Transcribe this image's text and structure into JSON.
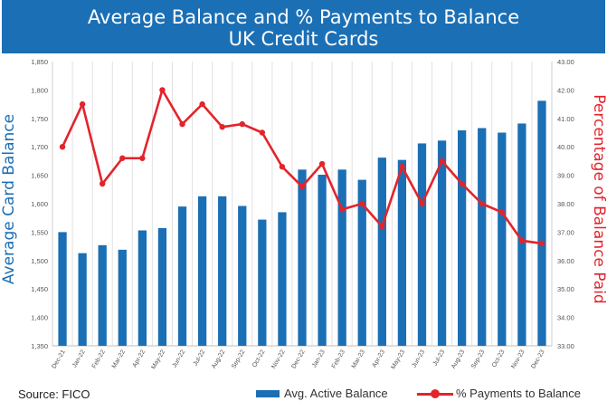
{
  "header": {
    "title_line1": "Average Balance and % Payments to Balance",
    "title_line2": "UK Credit Cards"
  },
  "footer": {
    "source": "Source: FICO"
  },
  "chart_data": {
    "type": "bar+line",
    "categories": [
      "Dec-21",
      "Jan-22",
      "Feb-22",
      "Mar-22",
      "Apr-22",
      "May-22",
      "Jun-22",
      "Jul-22",
      "Aug-22",
      "Sep-22",
      "Oct-22",
      "Nov-22",
      "Dec-22",
      "Jan-23",
      "Feb-23",
      "Mar-23",
      "Apr-23",
      "May-23",
      "Jun-23",
      "Jul-23",
      "Aug-23",
      "Sep-23",
      "Oct-23",
      "Nov-23",
      "Dec-23"
    ],
    "series": [
      {
        "name": "Avg. Active Balance",
        "kind": "bar",
        "axis": "left",
        "values": [
          1550,
          1513,
          1527,
          1519,
          1553,
          1557,
          1595,
          1613,
          1613,
          1596,
          1572,
          1585,
          1660,
          1651,
          1660,
          1642,
          1681,
          1677,
          1706,
          1711,
          1729,
          1733,
          1725,
          1741,
          1781
        ]
      },
      {
        "name": "% Payments to Balance",
        "kind": "line",
        "axis": "right",
        "values": [
          40.0,
          41.5,
          38.7,
          39.6,
          39.6,
          42.0,
          40.8,
          41.5,
          40.7,
          40.8,
          40.5,
          39.3,
          38.6,
          39.4,
          37.8,
          38.0,
          37.2,
          39.3,
          38.0,
          39.5,
          38.7,
          38.0,
          37.7,
          36.7,
          36.6
        ]
      }
    ],
    "xlabel": "",
    "ylabel_left": "Average Card Balance",
    "ylabel_right": "Percentage of Balance Paid",
    "ylim_left": [
      1350,
      1850
    ],
    "ylim_right": [
      33.0,
      43.0
    ],
    "yticks_left": [
      "1,350",
      "1,400",
      "1,450",
      "1,500",
      "1,550",
      "1,600",
      "1,650",
      "1,700",
      "1,750",
      "1,800",
      "1,850"
    ],
    "yticks_right": [
      "33.00",
      "34.00",
      "35.00",
      "36.00",
      "37.00",
      "38.00",
      "39.00",
      "40.00",
      "41.00",
      "42.00",
      "43.00"
    ],
    "grid": "vertical",
    "legend_position": "bottom-right",
    "colors": {
      "bar": "#1b6fb5",
      "line": "#e3242b",
      "title_band": "#1b6fb5"
    }
  }
}
